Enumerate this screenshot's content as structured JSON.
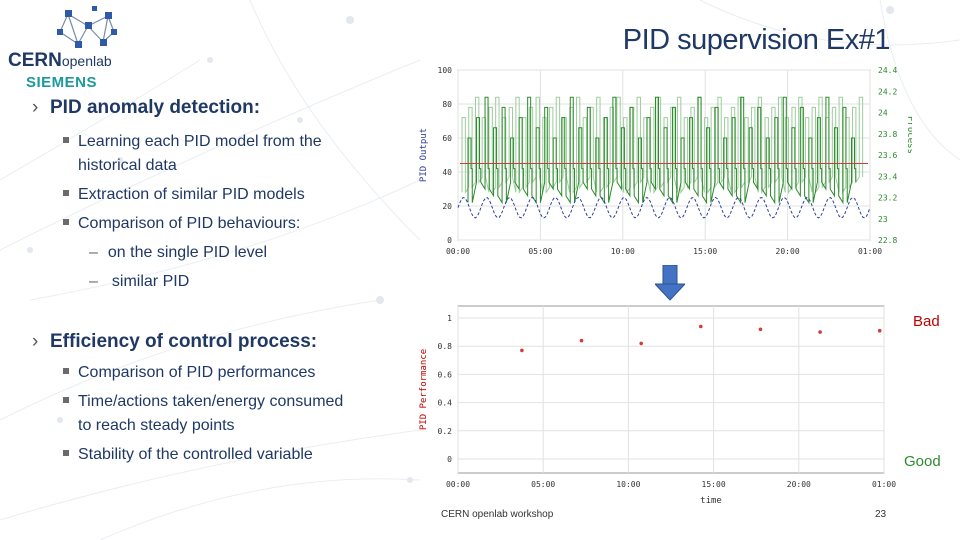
{
  "logo": {
    "cern": "CERN",
    "openlab": "openlab",
    "siemens": "SIEMENS"
  },
  "title": "PID supervision Ex#1",
  "section1": {
    "heading": "PID anomaly detection:",
    "bullets": [
      "Learning each PID model from the",
      "historical data",
      "Extraction of similar PID models",
      "Comparison of PID behaviours:"
    ],
    "subbullets": [
      "on the single PID level",
      "similar PID"
    ]
  },
  "section2": {
    "heading": "Efficiency of control process:",
    "bullets": [
      "Comparison of PID performances",
      "Time/actions taken/energy consumed",
      "to reach steady points",
      "Stability of the controlled variable"
    ]
  },
  "chart_data": [
    {
      "type": "line",
      "title": "",
      "xlabel": "",
      "ylabel": "PID Output",
      "y2label": "Process",
      "x_ticks": [
        "00:00",
        "05:00",
        "10:00",
        "15:00",
        "20:00",
        "01:00"
      ],
      "y_ticks": [
        "0",
        "20",
        "40",
        "60",
        "80",
        "100"
      ],
      "y2_ticks": [
        "22.8",
        "23",
        "23.2",
        "23.4",
        "23.6",
        "23.8",
        "24",
        "24.2",
        "24.4"
      ],
      "ylim": [
        0,
        100
      ],
      "y2lim": [
        22.8,
        24.4
      ],
      "grid": true,
      "colors": {
        "output": "#2a8a2a",
        "output_light": "#9dcc9d",
        "setpoint": "#d23c3c",
        "process": "#2f3f9a"
      },
      "series": [
        {
          "name": "",
          "description_values": {
            "mean": 45,
            "high": 80,
            "low": 25
          }
        },
        {
          "name": "",
          "values": [
            45
          ]
        },
        {
          "name": "",
          "values": [
            13,
            25
          ]
        }
      ]
    },
    {
      "type": "scatter",
      "title": "",
      "xlabel": "time",
      "ylabel": "PID Performance",
      "x_ticks": [
        "00:00",
        "05:00",
        "10:00",
        "15:00",
        "20:00",
        "01:00"
      ],
      "y_ticks": [
        "0",
        "0.2",
        "0.4",
        "0.6",
        "0.8",
        "1"
      ],
      "ylim": [
        0,
        1
      ],
      "grid": true,
      "point_color": "#d23c3c",
      "points": [
        {
          "x": "03:45",
          "y": 0.77
        },
        {
          "x": "07:15",
          "y": 0.84
        },
        {
          "x": "10:45",
          "y": 0.82
        },
        {
          "x": "14:15",
          "y": 0.94
        },
        {
          "x": "17:45",
          "y": 0.92
        },
        {
          "x": "21:15",
          "y": 0.9
        },
        {
          "x": "24:45",
          "y": 0.91
        }
      ]
    }
  ],
  "labels": {
    "bad": "Bad",
    "good": "Good"
  },
  "footer": {
    "workshop": "CERN openlab workshop",
    "page": "23"
  }
}
